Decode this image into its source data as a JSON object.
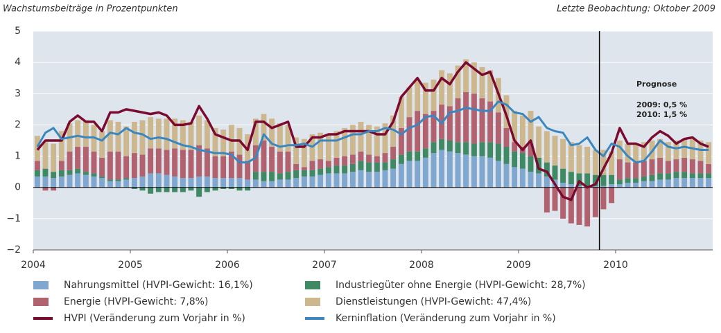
{
  "chart_data": {
    "type": "bar",
    "subtitle": "Wachstumsbeiträge in Prozentpunkten",
    "note": "Letzte Beobachtung: Oktober 2009",
    "annotations": [
      "Prognose",
      "2009: 0,5 %",
      "2010: 1,5 %"
    ],
    "forecast_start": 2009.833,
    "xlim": [
      2004,
      2011
    ],
    "xticks": [
      2004,
      2005,
      2006,
      2007,
      2008,
      2009,
      2010
    ],
    "ylim": [
      -2,
      5
    ],
    "yticks": [
      {
        "value": -2,
        "label": "−2"
      },
      {
        "value": -1,
        "label": "−1"
      },
      0,
      1,
      2,
      3,
      4,
      5
    ],
    "grid": true,
    "x": [
      2004.042,
      2004.125,
      2004.208,
      2004.292,
      2004.375,
      2004.458,
      2004.542,
      2004.625,
      2004.708,
      2004.792,
      2004.875,
      2004.958,
      2005.042,
      2005.125,
      2005.208,
      2005.292,
      2005.375,
      2005.458,
      2005.542,
      2005.625,
      2005.708,
      2005.792,
      2005.875,
      2005.958,
      2006.042,
      2006.125,
      2006.208,
      2006.292,
      2006.375,
      2006.458,
      2006.542,
      2006.625,
      2006.708,
      2006.792,
      2006.875,
      2006.958,
      2007.042,
      2007.125,
      2007.208,
      2007.292,
      2007.375,
      2007.458,
      2007.542,
      2007.625,
      2007.708,
      2007.792,
      2007.875,
      2007.958,
      2008.042,
      2008.125,
      2008.208,
      2008.292,
      2008.375,
      2008.458,
      2008.542,
      2008.625,
      2008.708,
      2008.792,
      2008.875,
      2008.958,
      2009.042,
      2009.125,
      2009.208,
      2009.292,
      2009.375,
      2009.458,
      2009.542,
      2009.625,
      2009.708,
      2009.792,
      2009.875,
      2009.958,
      2010.042,
      2010.125,
      2010.208,
      2010.292,
      2010.375,
      2010.458,
      2010.542,
      2010.625,
      2010.708,
      2010.792,
      2010.875,
      2010.958
    ],
    "series": [
      {
        "name": "Nahrungsmittel (HVPI-Gewicht: 16,1%)",
        "type": "bar",
        "color": "#7fa7cf",
        "values": [
          0.35,
          0.35,
          0.3,
          0.35,
          0.4,
          0.45,
          0.4,
          0.35,
          0.3,
          0.2,
          0.2,
          0.25,
          0.3,
          0.35,
          0.45,
          0.45,
          0.4,
          0.35,
          0.3,
          0.3,
          0.35,
          0.35,
          0.3,
          0.3,
          0.3,
          0.3,
          0.25,
          0.25,
          0.2,
          0.2,
          0.25,
          0.25,
          0.3,
          0.35,
          0.35,
          0.4,
          0.45,
          0.45,
          0.45,
          0.5,
          0.55,
          0.5,
          0.5,
          0.55,
          0.6,
          0.75,
          0.85,
          0.85,
          0.95,
          1.1,
          1.2,
          1.15,
          1.1,
          1.05,
          1.0,
          1.0,
          0.95,
          0.85,
          0.75,
          0.65,
          0.6,
          0.5,
          0.45,
          0.35,
          0.25,
          0.15,
          0.1,
          0.05,
          0.05,
          0.05,
          0.05,
          0.1,
          0.1,
          0.15,
          0.15,
          0.2,
          0.2,
          0.25,
          0.25,
          0.3,
          0.3,
          0.3,
          0.3,
          0.3
        ]
      },
      {
        "name": "Industriegüter ohne Energie (HVPI-Gewicht: 28,7%)",
        "type": "bar",
        "color": "#3f8a64",
        "values": [
          0.2,
          0.25,
          0.2,
          0.2,
          0.15,
          0.15,
          0.1,
          0.1,
          0.05,
          0.05,
          0.05,
          0.05,
          -0.05,
          -0.1,
          -0.2,
          -0.15,
          -0.15,
          -0.15,
          -0.15,
          -0.1,
          -0.3,
          -0.15,
          -0.1,
          -0.05,
          -0.05,
          -0.1,
          -0.1,
          0.25,
          0.3,
          0.3,
          0.2,
          0.25,
          0.25,
          0.2,
          0.2,
          0.2,
          0.2,
          0.25,
          0.25,
          0.25,
          0.3,
          0.3,
          0.3,
          0.25,
          0.3,
          0.3,
          0.3,
          0.3,
          0.3,
          0.35,
          0.35,
          0.35,
          0.35,
          0.4,
          0.4,
          0.45,
          0.5,
          0.55,
          0.55,
          0.5,
          0.5,
          0.5,
          0.5,
          0.45,
          0.45,
          0.45,
          0.4,
          0.4,
          0.4,
          0.35,
          0.35,
          0.3,
          0.15,
          0.15,
          0.15,
          0.15,
          0.2,
          0.2,
          0.2,
          0.2,
          0.2,
          0.15,
          0.15,
          0.15
        ]
      },
      {
        "name": "Energie (HVPI-Gewicht: 7,8%)",
        "type": "bar",
        "color": "#b2626f",
        "values": [
          0.3,
          -0.1,
          -0.1,
          0.3,
          0.6,
          0.7,
          0.8,
          0.7,
          0.6,
          0.9,
          0.9,
          0.7,
          0.8,
          0.7,
          0.8,
          0.8,
          0.8,
          0.9,
          0.9,
          0.9,
          1.0,
          0.9,
          0.7,
          0.7,
          0.85,
          0.75,
          0.6,
          0.85,
          1.0,
          0.8,
          0.7,
          0.65,
          0.2,
          0.1,
          0.3,
          0.3,
          0.2,
          0.25,
          0.3,
          0.3,
          0.3,
          0.25,
          0.2,
          0.3,
          0.4,
          0.85,
          1.1,
          1.3,
          1.1,
          1.0,
          1.1,
          1.1,
          1.4,
          1.6,
          1.6,
          1.4,
          1.3,
          1.0,
          0.6,
          0.3,
          0.2,
          0.4,
          0.0,
          -0.8,
          -0.75,
          -1.0,
          -1.15,
          -1.2,
          -1.25,
          -0.95,
          -0.7,
          -0.5,
          0.65,
          0.5,
          0.5,
          0.5,
          0.5,
          0.5,
          0.4,
          0.4,
          0.45,
          0.45,
          0.4,
          0.3
        ]
      },
      {
        "name": "Dienstleistungen (HVPI-Gewicht: 47,4%)",
        "type": "bar",
        "color": "#cdb78e",
        "values": [
          0.8,
          0.85,
          0.9,
          0.95,
          0.9,
          0.85,
          0.85,
          0.85,
          0.85,
          1.0,
          0.95,
          0.95,
          1.0,
          1.1,
          1.0,
          0.95,
          1.0,
          0.95,
          0.95,
          0.9,
          0.95,
          0.9,
          0.9,
          0.85,
          0.85,
          0.85,
          0.85,
          0.85,
          0.85,
          0.9,
          0.9,
          0.85,
          0.85,
          0.9,
          0.85,
          0.85,
          0.85,
          0.85,
          0.9,
          0.95,
          0.95,
          0.95,
          0.95,
          0.95,
          1.0,
          1.0,
          0.95,
          1.0,
          1.0,
          1.0,
          1.1,
          1.05,
          1.05,
          1.05,
          1.0,
          1.0,
          1.0,
          1.1,
          1.05,
          1.0,
          1.0,
          1.05,
          1.0,
          1.0,
          0.95,
          0.95,
          0.95,
          0.9,
          0.85,
          0.8,
          0.8,
          0.75,
          0.6,
          0.6,
          0.6,
          0.6,
          0.6,
          0.6,
          0.6,
          0.6,
          0.6,
          0.65,
          0.65,
          0.7
        ]
      },
      {
        "name": "HVPI (Veränderung zum Vorjahr in %)",
        "type": "line",
        "color": "#7a0a30",
        "values": [
          1.2,
          1.5,
          1.5,
          1.5,
          2.1,
          2.3,
          2.1,
          2.1,
          1.8,
          2.4,
          2.4,
          2.5,
          2.45,
          2.4,
          2.35,
          2.4,
          2.3,
          2.0,
          2.0,
          2.05,
          2.6,
          2.2,
          1.7,
          1.6,
          1.5,
          1.5,
          1.2,
          2.1,
          2.1,
          1.9,
          2.0,
          2.1,
          1.3,
          1.3,
          1.6,
          1.6,
          1.7,
          1.7,
          1.8,
          1.8,
          1.8,
          1.8,
          1.7,
          1.7,
          2.1,
          2.9,
          3.2,
          3.5,
          3.1,
          3.1,
          3.5,
          3.3,
          3.7,
          4.0,
          3.8,
          3.6,
          3.7,
          3.0,
          2.3,
          1.5,
          1.2,
          1.5,
          0.6,
          0.5,
          0.1,
          -0.3,
          -0.4,
          0.2,
          0.0,
          0.1,
          0.6,
          1.1,
          1.9,
          1.4,
          1.4,
          1.3,
          1.6,
          1.8,
          1.65,
          1.4,
          1.55,
          1.6,
          1.4,
          1.3
        ]
      },
      {
        "name": "Kerninflation (Veränderung zum Vorjahr in %)",
        "type": "line",
        "color": "#3a87bf",
        "values": [
          1.3,
          1.75,
          1.9,
          1.55,
          1.6,
          1.65,
          1.6,
          1.6,
          1.5,
          1.75,
          1.7,
          1.9,
          1.75,
          1.7,
          1.55,
          1.6,
          1.55,
          1.45,
          1.35,
          1.3,
          1.2,
          1.15,
          1.1,
          1.1,
          1.05,
          0.8,
          0.8,
          0.95,
          1.7,
          1.4,
          1.3,
          1.35,
          1.35,
          1.4,
          1.3,
          1.5,
          1.5,
          1.5,
          1.6,
          1.7,
          1.7,
          1.8,
          1.8,
          1.9,
          1.85,
          1.7,
          1.9,
          2.0,
          2.25,
          2.3,
          2.05,
          2.4,
          2.45,
          2.55,
          2.5,
          2.45,
          2.45,
          2.75,
          2.65,
          2.4,
          2.35,
          2.1,
          2.25,
          1.9,
          1.8,
          1.75,
          1.35,
          1.4,
          1.6,
          1.2,
          1.0,
          1.4,
          1.3,
          1.0,
          0.8,
          0.85,
          1.15,
          1.5,
          1.3,
          1.25,
          1.3,
          1.25,
          1.2,
          1.2
        ]
      }
    ]
  }
}
